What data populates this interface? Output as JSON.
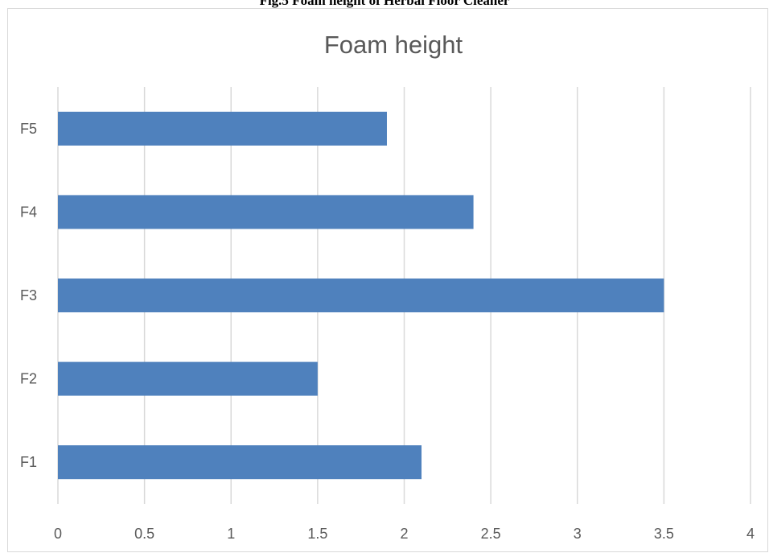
{
  "caption": "Fig.5 Foam height of Herbal Floor Cleaner",
  "chart_data": {
    "type": "bar",
    "orientation": "horizontal",
    "title": "Foam height",
    "xlabel": "",
    "ylabel": "",
    "categories": [
      "F1",
      "F2",
      "F3",
      "F4",
      "F5"
    ],
    "values": [
      2.1,
      1.5,
      3.5,
      2.4,
      1.9
    ],
    "xlim": [
      0,
      4
    ],
    "xticks": [
      "0",
      "0.5",
      "1",
      "1.5",
      "2",
      "2.5",
      "3",
      "3.5",
      "4"
    ],
    "grid": true,
    "legend": "none",
    "bar_color": "#4f81bd",
    "grid_color": "#d9d9d9"
  }
}
